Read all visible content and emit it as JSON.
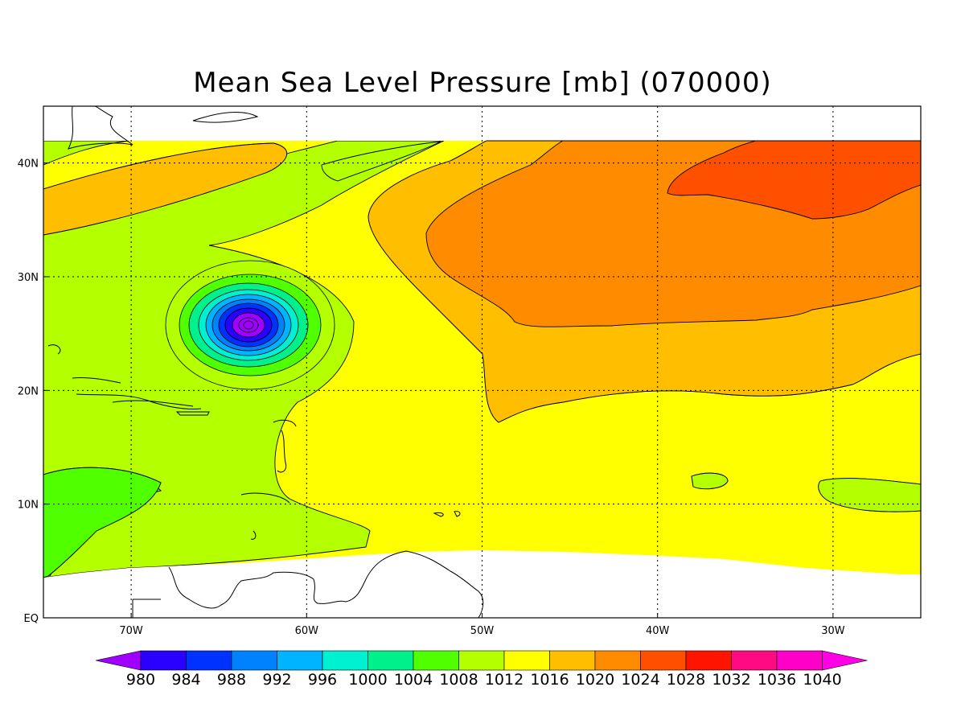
{
  "title": "Mean Sea Level Pressure [mb] (070000)",
  "map": {
    "lon_range": [
      "75W",
      "25W"
    ],
    "lat_range": [
      "EQ",
      "45N"
    ],
    "x_ticks": [
      "70W",
      "60W",
      "50W",
      "40W",
      "30W"
    ],
    "y_ticks": [
      "EQ",
      "10N",
      "20N",
      "30N",
      "40N"
    ],
    "grid": "dotted",
    "low_center": {
      "lon": "63W",
      "lat": "26N"
    }
  },
  "colorbar": {
    "labels": [
      "980",
      "984",
      "988",
      "992",
      "996",
      "1000",
      "1004",
      "1008",
      "1012",
      "1016",
      "1020",
      "1024",
      "1028",
      "1032",
      "1036",
      "1040"
    ],
    "colors": [
      "#a000ff",
      "#2a00ff",
      "#0032ff",
      "#0082ff",
      "#00b4ff",
      "#00f0d2",
      "#00f08c",
      "#50ff00",
      "#b4ff00",
      "#ffff00",
      "#ffbe00",
      "#ff8c00",
      "#ff5000",
      "#ff1400",
      "#ff0a82",
      "#ff00c8",
      "#ff00e6"
    ]
  },
  "palette": {
    "p1008": "#b4ff00",
    "p1012": "#ffff00",
    "p1016": "#ffbe00",
    "p1020": "#ff8c00",
    "p1024": "#ff5000",
    "p1004": "#50ff00"
  }
}
